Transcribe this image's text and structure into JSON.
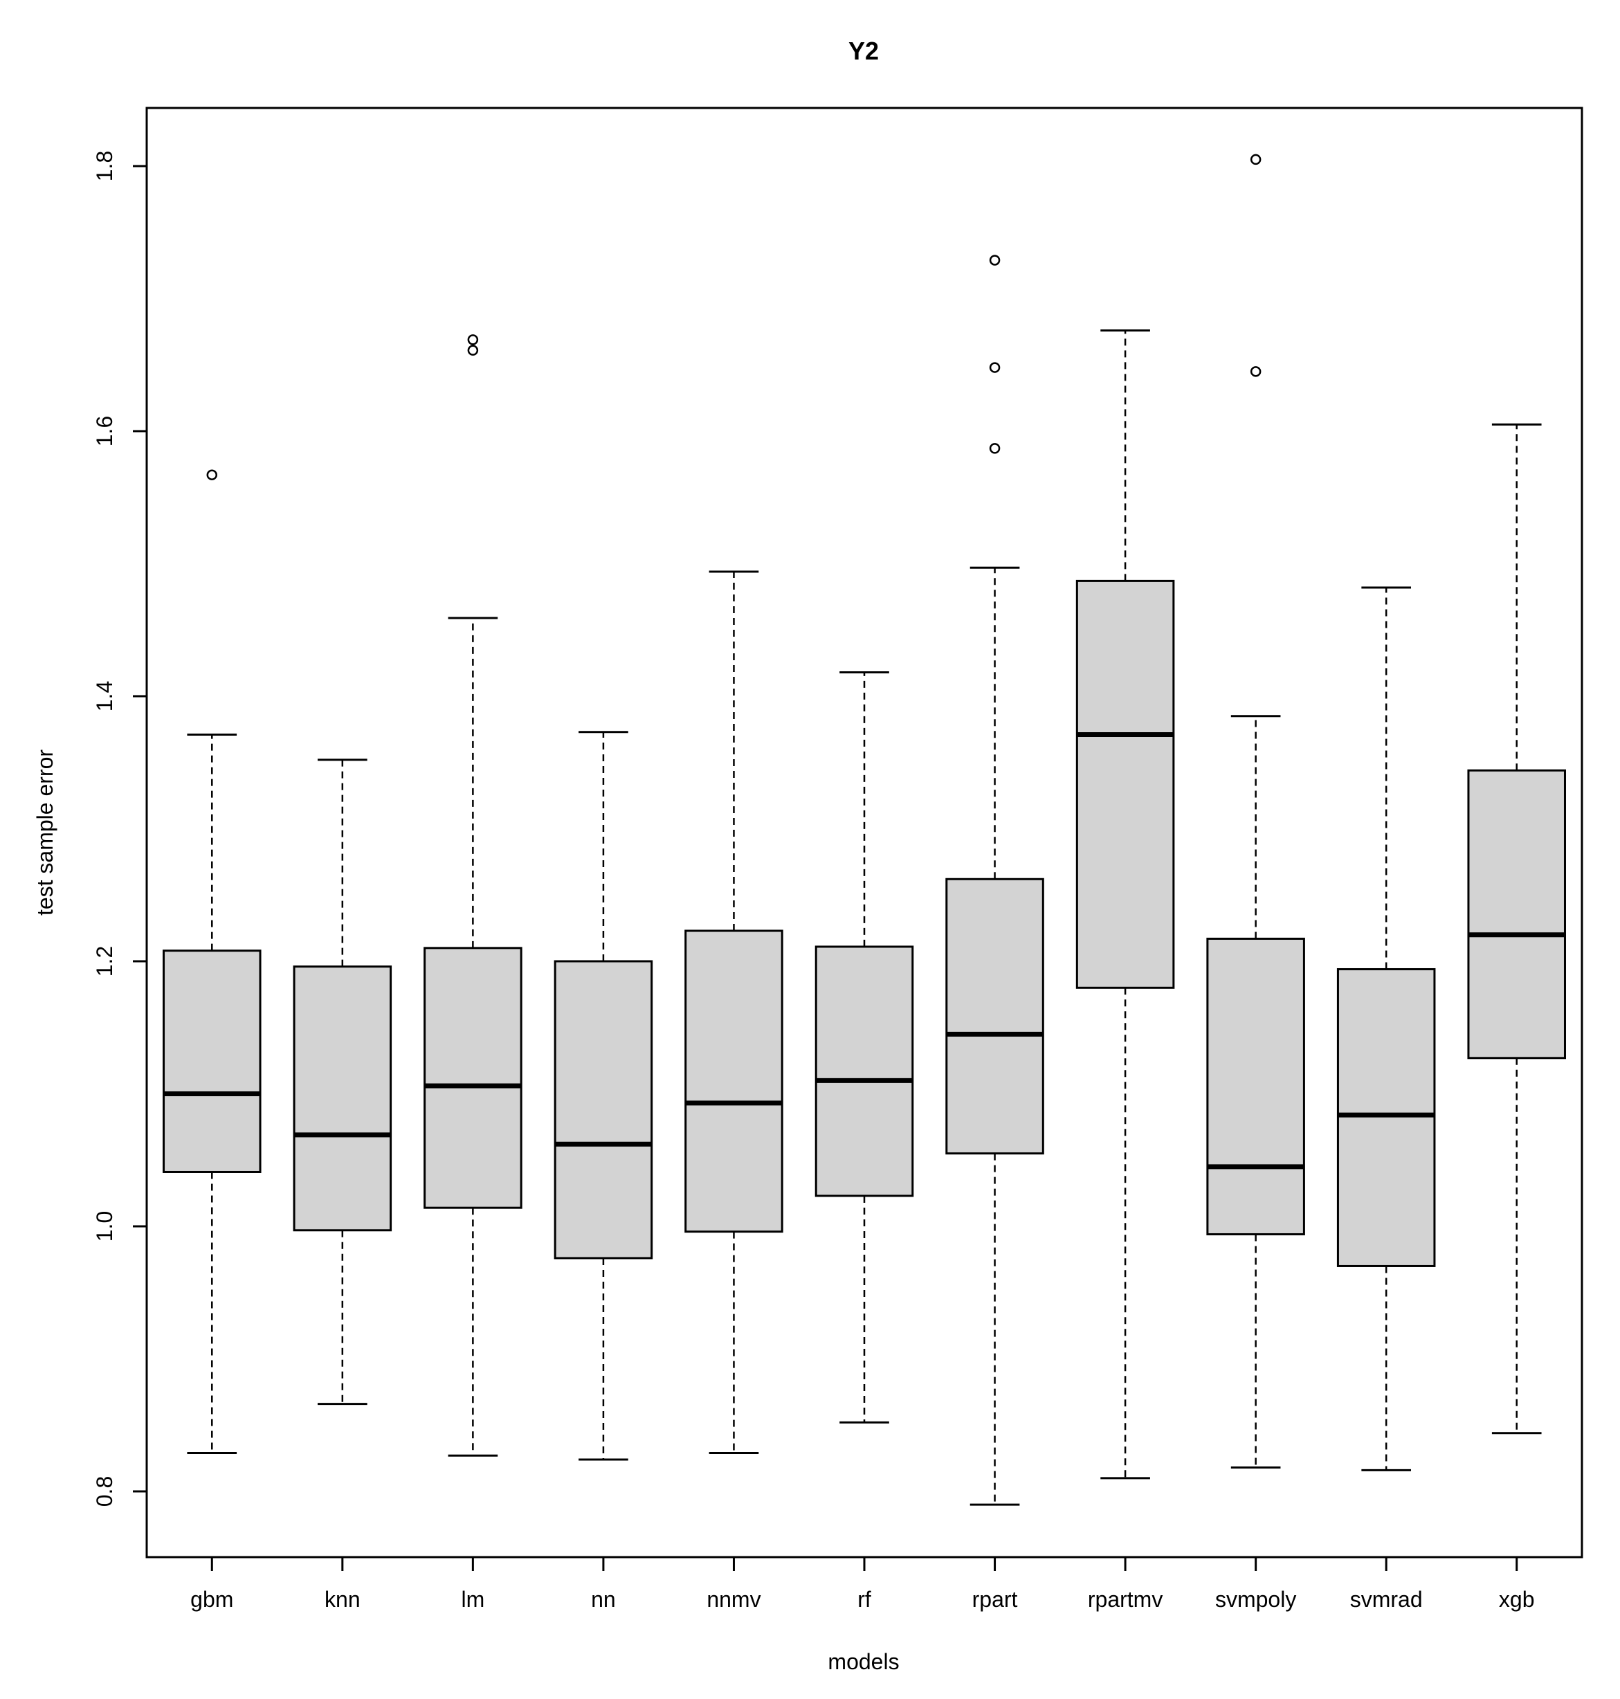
{
  "chart_data": {
    "type": "boxplot",
    "title": "Y2",
    "xlabel": "models",
    "ylabel": "test sample error",
    "ylim": [
      0.75,
      1.85
    ],
    "yticks": [
      0.8,
      1.0,
      1.2,
      1.4,
      1.6,
      1.8
    ],
    "ytick_labels": [
      "0.8",
      "1.0",
      "1.2",
      "1.4",
      "1.6",
      "1.8"
    ],
    "box_fill": "#d3d3d3",
    "line_color": "#000000",
    "categories": [
      "gbm",
      "knn",
      "lm",
      "nn",
      "nnmv",
      "rf",
      "rpart",
      "rpartmv",
      "svmpoly",
      "svmrad",
      "xgb"
    ],
    "boxes": [
      {
        "name": "gbm",
        "whisker_low": 0.829,
        "q1": 1.041,
        "median": 1.1,
        "q3": 1.208,
        "whisker_high": 1.371,
        "outliers": [
          1.567
        ]
      },
      {
        "name": "knn",
        "whisker_low": 0.866,
        "q1": 0.997,
        "median": 1.069,
        "q3": 1.196,
        "whisker_high": 1.352,
        "outliers": []
      },
      {
        "name": "lm",
        "whisker_low": 0.827,
        "q1": 1.014,
        "median": 1.106,
        "q3": 1.21,
        "whisker_high": 1.459,
        "outliers": [
          1.669,
          1.661
        ]
      },
      {
        "name": "nn",
        "whisker_low": 0.824,
        "q1": 0.976,
        "median": 1.062,
        "q3": 1.2,
        "whisker_high": 1.373,
        "outliers": []
      },
      {
        "name": "nnmv",
        "whisker_low": 0.829,
        "q1": 0.996,
        "median": 1.093,
        "q3": 1.223,
        "whisker_high": 1.494,
        "outliers": []
      },
      {
        "name": "rf",
        "whisker_low": 0.852,
        "q1": 1.023,
        "median": 1.11,
        "q3": 1.211,
        "whisker_high": 1.418,
        "outliers": []
      },
      {
        "name": "rpart",
        "whisker_low": 0.79,
        "q1": 1.055,
        "median": 1.145,
        "q3": 1.262,
        "whisker_high": 1.497,
        "outliers": [
          1.729,
          1.648,
          1.587
        ]
      },
      {
        "name": "rpartmv",
        "whisker_low": 0.81,
        "q1": 1.18,
        "median": 1.371,
        "q3": 1.487,
        "whisker_high": 1.676,
        "outliers": []
      },
      {
        "name": "svmpoly",
        "whisker_low": 0.818,
        "q1": 0.994,
        "median": 1.045,
        "q3": 1.217,
        "whisker_high": 1.385,
        "outliers": [
          1.805,
          1.645
        ]
      },
      {
        "name": "svmrad",
        "whisker_low": 0.816,
        "q1": 0.97,
        "median": 1.084,
        "q3": 1.194,
        "whisker_high": 1.482,
        "outliers": []
      },
      {
        "name": "xgb",
        "whisker_low": 0.844,
        "q1": 1.127,
        "median": 1.22,
        "q3": 1.344,
        "whisker_high": 1.605,
        "outliers": []
      }
    ]
  }
}
